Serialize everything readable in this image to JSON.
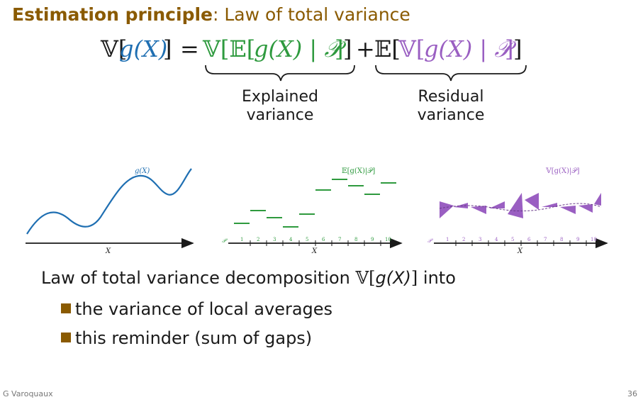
{
  "title": {
    "bold": "Estimation principle",
    "rest": ": Law of total variance"
  },
  "formula": {
    "lhs_open": "𝕍[",
    "g_of_x": "g(X)",
    "lhs_close": "]",
    "equals": "=",
    "term1_open": "𝕍[𝔼[",
    "term1_inner": "g(X) | 𝒫",
    "term1_close_inner": "]",
    "term1_close": "]",
    "plus": "+",
    "term2_open_e": "𝔼[",
    "term2_open_v": "𝕍[",
    "term2_inner": "g(X) | 𝒫",
    "term2_close_inner": "]",
    "term2_close": "]"
  },
  "braces": {
    "explained": [
      "Explained",
      "variance"
    ],
    "residual": [
      "Residual",
      "variance"
    ]
  },
  "figures": {
    "fig1_label": "g(X)",
    "fig2_label": "𝔼[g(X)|𝒫]",
    "fig3_label": "𝕍[g(X)|𝒫]",
    "x_label": "X",
    "p_label": "𝒫",
    "ticks": [
      "1",
      "2",
      "3",
      "4",
      "5",
      "6",
      "7",
      "8",
      "9",
      "10"
    ]
  },
  "colors": {
    "title": "#8a5a00",
    "blue": "#1f6fb2",
    "green": "#2e9a3e",
    "purple": "#9a5fc2",
    "bullet": "#8a5a00"
  },
  "body": {
    "intro_prefix": "Law of total variance decomposition ",
    "intro_v": "𝕍[",
    "intro_g": "g(X)",
    "intro_close": "]",
    "intro_suffix": " into",
    "bullets": [
      "the variance of local averages",
      "this reminder (sum of gaps)"
    ]
  },
  "footer": {
    "author": "G Varoquaux",
    "page": "36"
  }
}
